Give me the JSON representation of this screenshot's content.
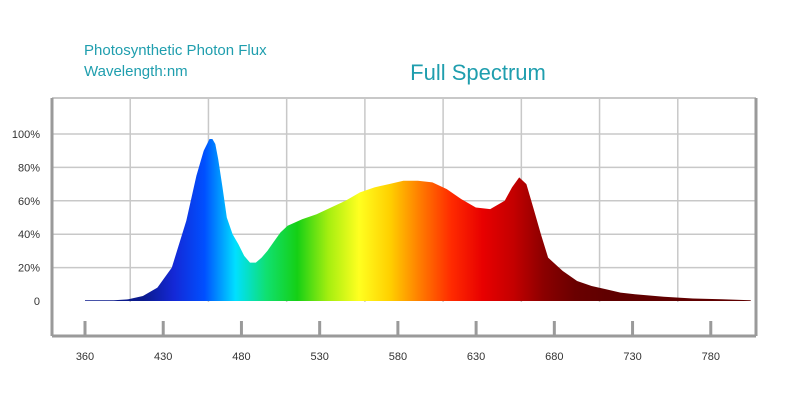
{
  "caption": {
    "line1": "Photosynthetic Photon Flux",
    "line2": "Wavelength:nm"
  },
  "chart_data": {
    "type": "area",
    "title": "Full Spectrum",
    "xlabel": "",
    "ylabel": "",
    "grid": true,
    "x_ticks": [
      "360",
      "430",
      "480",
      "530",
      "580",
      "630",
      "680",
      "730",
      "780"
    ],
    "y_ticks": [
      "0",
      "20%",
      "40%",
      "60%",
      "80%",
      "100%"
    ],
    "ylim": [
      0,
      100
    ],
    "series": [
      {
        "x": [
          360,
          380,
          390,
          400,
          410,
          420,
          430,
          437,
          442,
          446,
          448,
          450,
          452,
          455,
          458,
          462,
          466,
          470,
          474,
          478,
          482,
          486,
          490,
          495,
          500,
          505,
          510,
          520,
          530,
          540,
          550,
          560,
          570,
          580,
          590,
          600,
          610,
          620,
          630,
          640,
          650,
          655,
          660,
          665,
          670,
          675,
          680,
          690,
          700,
          710,
          720,
          730,
          740,
          760,
          780,
          800,
          820
        ],
        "values": [
          0.5,
          0.5,
          1,
          3,
          8,
          20,
          48,
          75,
          90,
          97,
          97,
          94,
          85,
          68,
          50,
          40,
          34,
          27,
          23,
          23,
          26,
          30,
          35,
          41,
          45,
          47,
          49,
          52,
          56,
          60,
          65,
          68,
          70,
          72,
          72,
          71,
          67,
          61,
          56,
          55,
          60,
          68,
          74,
          70,
          55,
          40,
          26,
          18,
          12,
          9,
          7,
          5,
          4,
          2.5,
          1.5,
          1,
          0.5
        ]
      }
    ],
    "colors": {
      "spectrum_stops": [
        "#0b1a8c",
        "#1428d6",
        "#0050ff",
        "#00e0ff",
        "#10e070",
        "#15d015",
        "#a4ee10",
        "#ffff20",
        "#ffd000",
        "#ff7a00",
        "#ff2a00",
        "#e80000",
        "#c40000",
        "#8a0000",
        "#6a0000",
        "#600000"
      ],
      "caption": "#1f9eae",
      "grid": "#c8c8c8",
      "frame": "#9a9a9a"
    }
  }
}
